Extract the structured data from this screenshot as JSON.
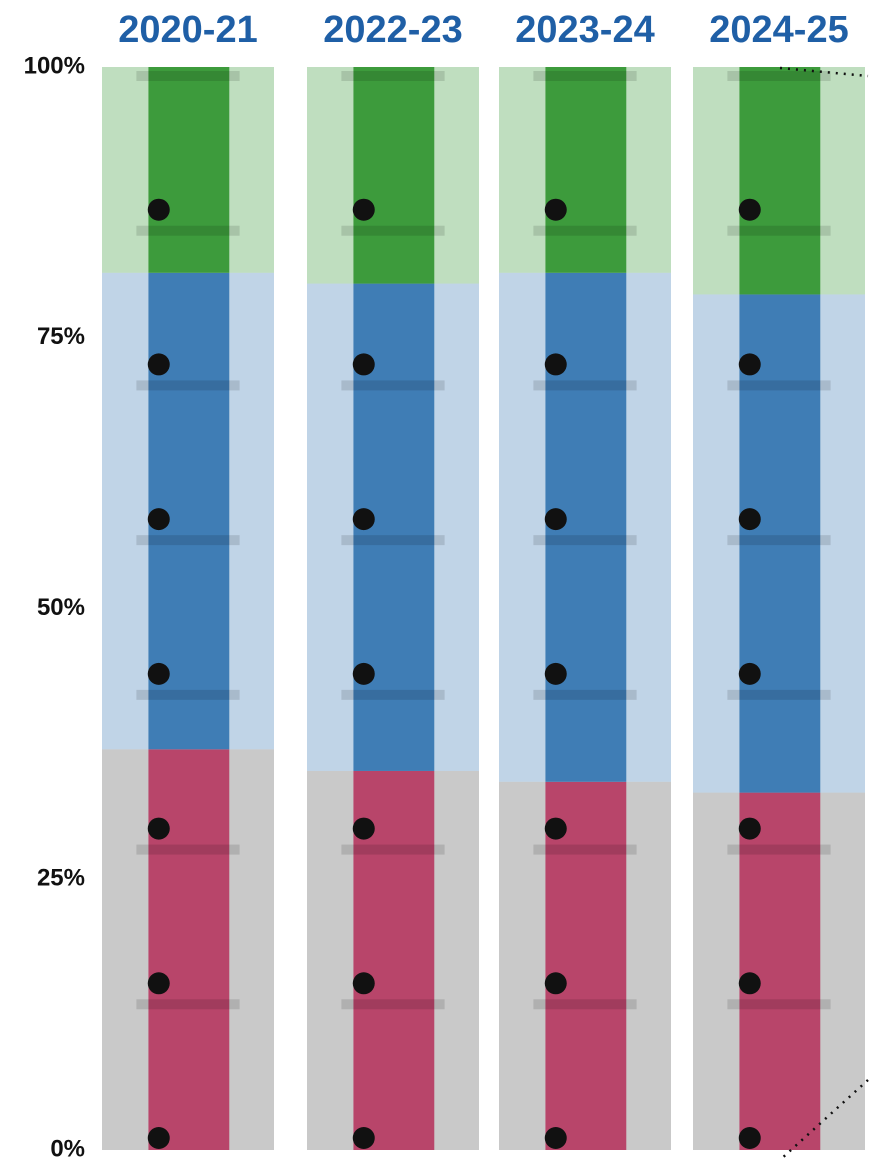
{
  "chart_data": {
    "type": "stacked_bar",
    "categories": [
      "2020-21",
      "2022-23",
      "2023-24",
      "2024-25"
    ],
    "series": [
      {
        "color": "#b8456a",
        "values": [
          37,
          35,
          34,
          33
        ]
      },
      {
        "color": "#3f7db5",
        "values": [
          44,
          45,
          47,
          46
        ]
      },
      {
        "color": "#3d9b3c",
        "values": [
          19,
          20,
          19,
          21
        ]
      }
    ],
    "ylim": [
      0,
      100
    ],
    "yticks": [
      {
        "value": 0,
        "label": "0%"
      },
      {
        "value": 25,
        "label": "25%"
      },
      {
        "value": 50,
        "label": "50%"
      },
      {
        "value": 75,
        "label": "75%"
      },
      {
        "value": 100,
        "label": "100%"
      }
    ]
  }
}
